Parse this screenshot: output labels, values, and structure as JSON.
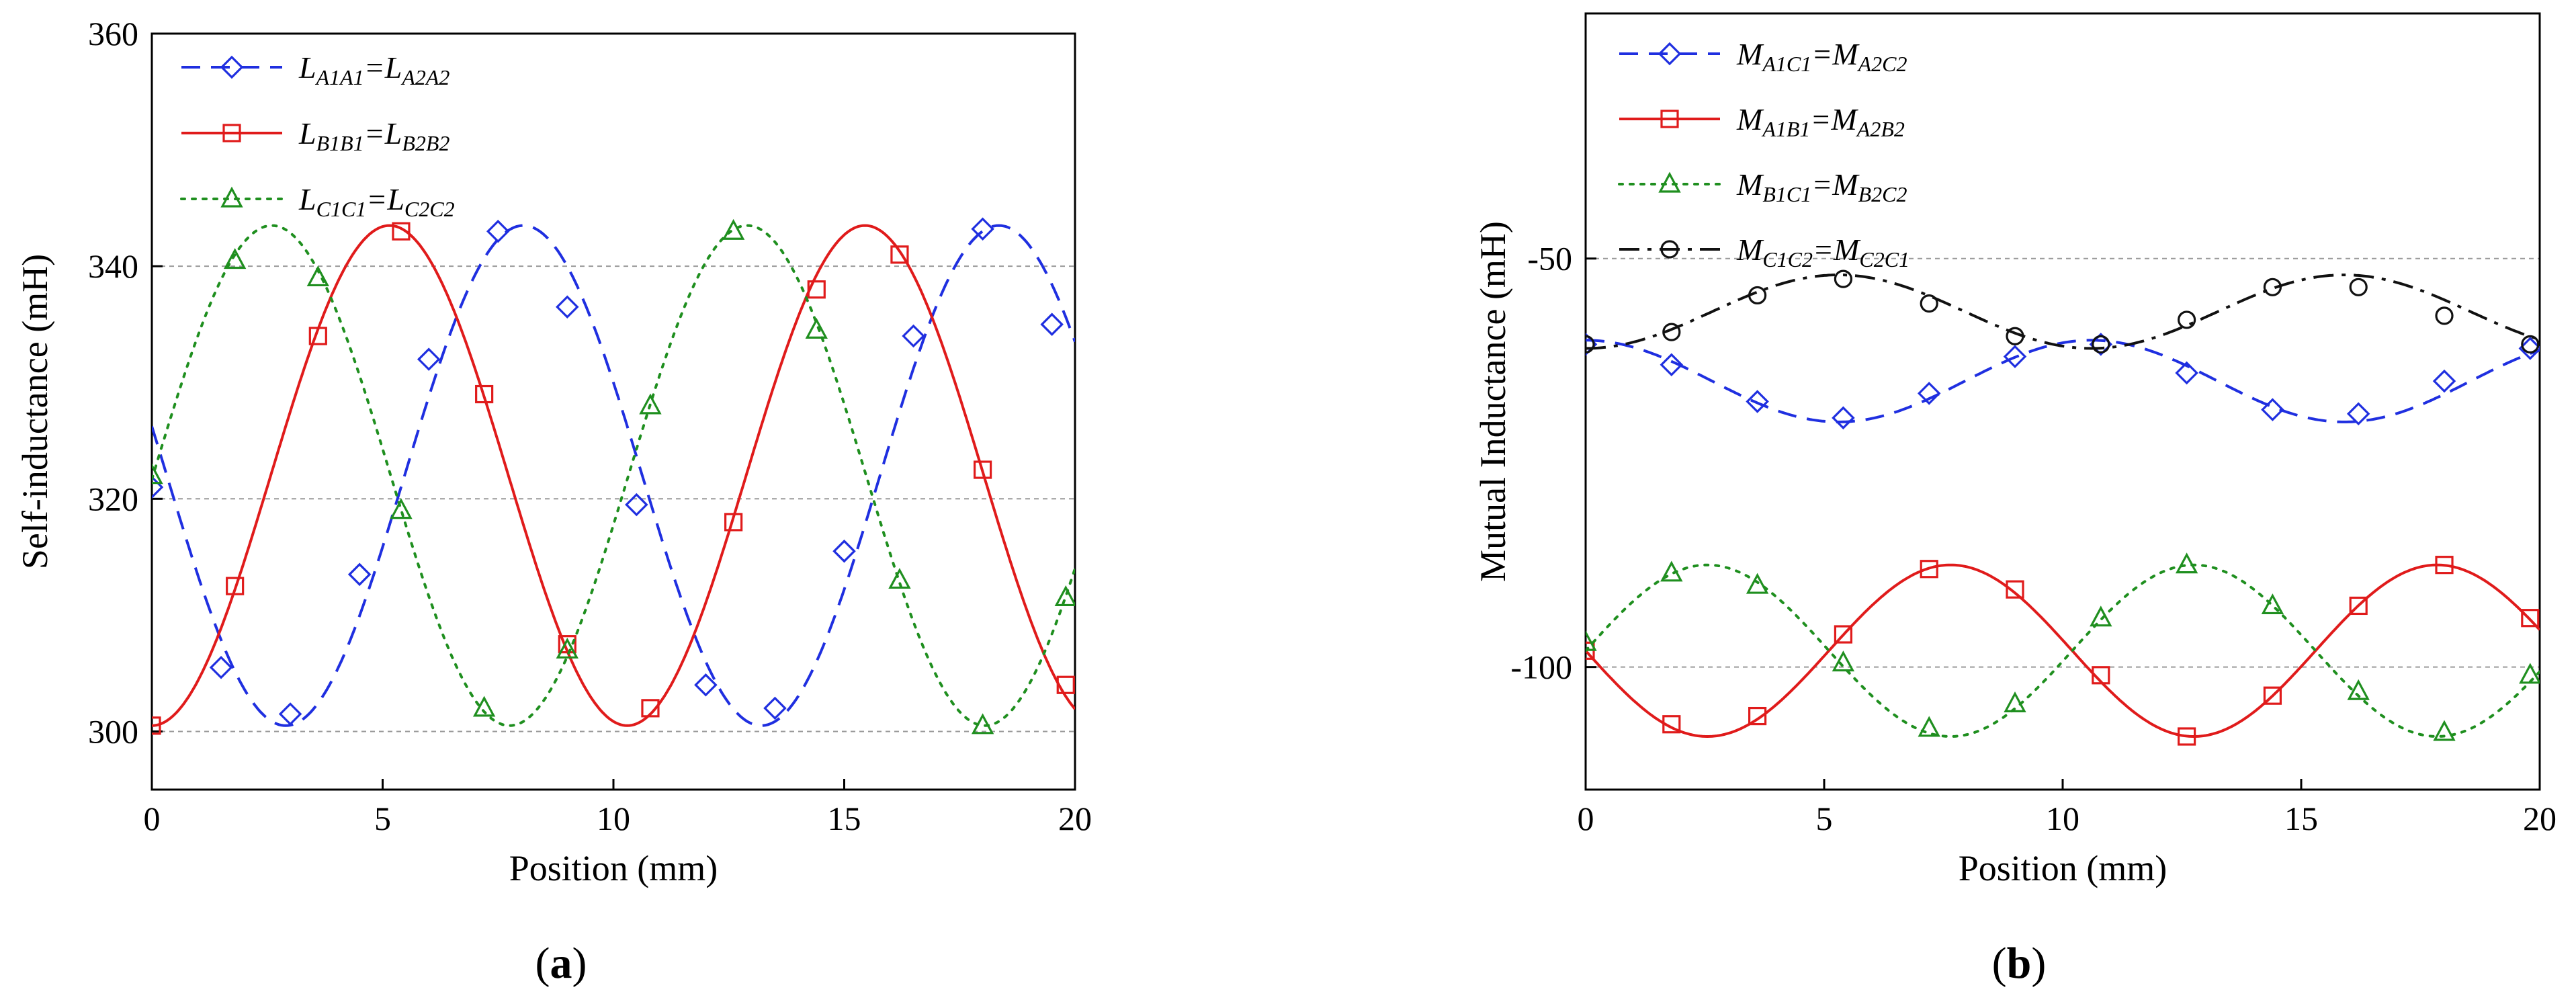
{
  "chart_data": [
    {
      "panel": "a",
      "panel_label": "(a)",
      "type": "line",
      "xlabel": "Position (mm)",
      "ylabel": "Self-inductance (mH)",
      "xlim": [
        0,
        20
      ],
      "ylim": [
        295,
        360
      ],
      "xticks": [
        0,
        5,
        10,
        15,
        20
      ],
      "yticks": [
        300,
        320,
        340,
        360
      ],
      "hgrid": [
        300,
        320,
        340
      ],
      "legend_position": "top-left",
      "series": [
        {
          "name": "LA1A1=LA2A2",
          "legend_parts": [
            [
              "L",
              ""
            ],
            [
              "A1A1",
              "sub"
            ],
            [
              "=L",
              ""
            ],
            [
              "A2A2",
              "sub"
            ]
          ],
          "color": "#1f2fe0",
          "dash": "28,16",
          "marker": "diamond",
          "curve": {
            "offset": 322,
            "amplitude": 21.5,
            "period": 10.3,
            "phase": 2.9,
            "shape": "cos-neg"
          },
          "markers": [
            [
              0,
              321
            ],
            [
              1.5,
              305.5
            ],
            [
              3,
              301.5
            ],
            [
              4.5,
              313.5
            ],
            [
              6,
              332
            ],
            [
              7.5,
              343
            ],
            [
              9,
              336.5
            ],
            [
              10.5,
              319.5
            ],
            [
              12,
              304
            ],
            [
              13.5,
              302
            ],
            [
              15,
              315.5
            ],
            [
              16.5,
              334
            ],
            [
              18,
              343.2
            ],
            [
              19.5,
              335
            ]
          ]
        },
        {
          "name": "LB1B1=LB2B2",
          "legend_parts": [
            [
              "L",
              ""
            ],
            [
              "B1B1",
              "sub"
            ],
            [
              "=L",
              ""
            ],
            [
              "B2B2",
              "sub"
            ]
          ],
          "color": "#e01b1b",
          "dash": "",
          "marker": "square",
          "curve": {
            "offset": 322,
            "amplitude": 21.5,
            "period": 10.3,
            "phase": 0,
            "shape": "cos-neg"
          },
          "markers": [
            [
              0,
              300.5
            ],
            [
              1.8,
              312.5
            ],
            [
              3.6,
              334
            ],
            [
              5.4,
              343
            ],
            [
              7.2,
              329
            ],
            [
              9,
              307.5
            ],
            [
              10.8,
              302
            ],
            [
              12.6,
              318
            ],
            [
              14.4,
              338
            ],
            [
              16.2,
              341
            ],
            [
              18,
              322.5
            ],
            [
              19.8,
              304
            ]
          ]
        },
        {
          "name": "LC1C1=LC2C2",
          "legend_parts": [
            [
              "L",
              ""
            ],
            [
              "C1C1",
              "sub"
            ],
            [
              "=L",
              ""
            ],
            [
              "C2C2",
              "sub"
            ]
          ],
          "color": "#1f8f1f",
          "dash": "5,11",
          "marker": "triangle",
          "curve": {
            "offset": 322,
            "amplitude": 21.5,
            "period": 10.3,
            "phase": -2.55,
            "shape": "cos-neg"
          },
          "markers": [
            [
              0,
              322
            ],
            [
              1.8,
              340.5
            ],
            [
              3.6,
              339
            ],
            [
              5.4,
              319
            ],
            [
              7.2,
              302
            ],
            [
              9,
              307
            ],
            [
              10.8,
              328
            ],
            [
              12.6,
              343
            ],
            [
              14.4,
              334.5
            ],
            [
              16.2,
              313
            ],
            [
              18,
              300.5
            ],
            [
              19.8,
              311.5
            ]
          ]
        }
      ]
    },
    {
      "panel": "b",
      "panel_label": "(b)",
      "type": "line",
      "xlabel": "Position (mm)",
      "ylabel": "Mutual Inductance (mH)",
      "xlim": [
        0,
        20
      ],
      "ylim": [
        -115,
        -20
      ],
      "xticks": [
        0,
        5,
        10,
        15,
        20
      ],
      "xtick_labels": [
        "0",
        "5",
        "10",
        "15",
        "20"
      ],
      "yticks": [
        -50,
        -100
      ],
      "hgrid": [
        -50,
        -100
      ],
      "legend_position": "top-left",
      "series": [
        {
          "name": "MA1C1=MA2C2",
          "legend_parts": [
            [
              "M",
              ""
            ],
            [
              "A1C1",
              "sub"
            ],
            [
              "=M",
              ""
            ],
            [
              "A2C2",
              "sub"
            ]
          ],
          "color": "#1f2fe0",
          "dash": "28,16",
          "marker": "diamond",
          "curve": {
            "offset": -65,
            "amplitude": 5,
            "period": 10.6,
            "phase": 0,
            "shape": "cos-pos"
          },
          "markers": [
            [
              0,
              -60.5
            ],
            [
              1.8,
              -63
            ],
            [
              3.6,
              -67.5
            ],
            [
              5.4,
              -69.5
            ],
            [
              7.2,
              -66.5
            ],
            [
              9,
              -62
            ],
            [
              10.8,
              -60.5
            ],
            [
              12.6,
              -64
            ],
            [
              14.4,
              -68.5
            ],
            [
              16.2,
              -69
            ],
            [
              18,
              -65
            ],
            [
              19.8,
              -61
            ]
          ]
        },
        {
          "name": "MA1B1=MA2B2",
          "legend_parts": [
            [
              "M",
              ""
            ],
            [
              "A1B1",
              "sub"
            ],
            [
              "=M",
              ""
            ],
            [
              "A2B2",
              "sub"
            ]
          ],
          "color": "#e01b1b",
          "dash": "",
          "marker": "square",
          "curve": {
            "offset": -98,
            "amplitude": 10.5,
            "period": 10.2,
            "phase": 0,
            "shape": "sin-neg"
          },
          "markers": [
            [
              0,
              -98
            ],
            [
              1.8,
              -107
            ],
            [
              3.6,
              -106
            ],
            [
              5.4,
              -96
            ],
            [
              7.2,
              -88
            ],
            [
              9,
              -90.5
            ],
            [
              10.8,
              -101
            ],
            [
              12.6,
              -108.5
            ],
            [
              14.4,
              -103.5
            ],
            [
              16.2,
              -92.5
            ],
            [
              18,
              -87.5
            ],
            [
              19.8,
              -94
            ]
          ]
        },
        {
          "name": "MB1C1=MB2C2",
          "legend_parts": [
            [
              "M",
              ""
            ],
            [
              "B1C1",
              "sub"
            ],
            [
              "=M",
              ""
            ],
            [
              "B2C2",
              "sub"
            ]
          ],
          "color": "#1f8f1f",
          "dash": "5,11",
          "marker": "triangle",
          "curve": {
            "offset": -98,
            "amplitude": 10.5,
            "period": 10.2,
            "phase": 0,
            "shape": "sin-pos"
          },
          "markers": [
            [
              0,
              -97
            ],
            [
              1.8,
              -88.5
            ],
            [
              3.6,
              -90
            ],
            [
              5.4,
              -99.5
            ],
            [
              7.2,
              -107.5
            ],
            [
              9,
              -104.5
            ],
            [
              10.8,
              -94
            ],
            [
              12.6,
              -87.5
            ],
            [
              14.4,
              -92.5
            ],
            [
              16.2,
              -103
            ],
            [
              18,
              -108
            ],
            [
              19.8,
              -101
            ]
          ]
        },
        {
          "name": "MC1C2=MC2C1",
          "legend_parts": [
            [
              "M",
              ""
            ],
            [
              "C1C2",
              "sub"
            ],
            [
              "=M",
              ""
            ],
            [
              "C2C1",
              "sub"
            ]
          ],
          "color": "#111111",
          "dash": "30,12,6,12",
          "marker": "circle",
          "curve": {
            "offset": -56.5,
            "amplitude": 4.5,
            "period": 10.6,
            "phase": 0,
            "shape": "cos-neg"
          },
          "markers": [
            [
              0,
              -60.5
            ],
            [
              1.8,
              -59
            ],
            [
              3.6,
              -54.5
            ],
            [
              5.4,
              -52.5
            ],
            [
              7.2,
              -55.5
            ],
            [
              9,
              -59.5
            ],
            [
              10.8,
              -60.5
            ],
            [
              12.6,
              -57.5
            ],
            [
              14.4,
              -53.5
            ],
            [
              16.2,
              -53.5
            ],
            [
              18,
              -57
            ],
            [
              19.8,
              -60.5
            ]
          ]
        }
      ]
    }
  ]
}
